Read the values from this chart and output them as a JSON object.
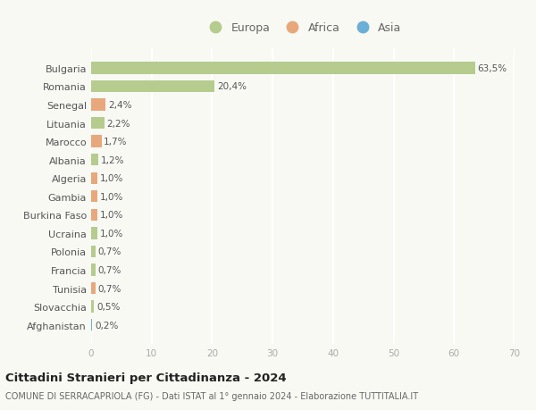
{
  "categories": [
    "Bulgaria",
    "Romania",
    "Senegal",
    "Lituania",
    "Marocco",
    "Albania",
    "Algeria",
    "Gambia",
    "Burkina Faso",
    "Ucraina",
    "Polonia",
    "Francia",
    "Tunisia",
    "Slovacchia",
    "Afghanistan"
  ],
  "values": [
    63.5,
    20.4,
    2.4,
    2.2,
    1.7,
    1.2,
    1.0,
    1.0,
    1.0,
    1.0,
    0.7,
    0.7,
    0.7,
    0.5,
    0.2
  ],
  "labels": [
    "63,5%",
    "20,4%",
    "2,4%",
    "2,2%",
    "1,7%",
    "1,2%",
    "1,0%",
    "1,0%",
    "1,0%",
    "1,0%",
    "0,7%",
    "0,7%",
    "0,7%",
    "0,5%",
    "0,2%"
  ],
  "continents": [
    "Europa",
    "Europa",
    "Africa",
    "Europa",
    "Africa",
    "Europa",
    "Africa",
    "Africa",
    "Africa",
    "Europa",
    "Europa",
    "Europa",
    "Africa",
    "Europa",
    "Asia"
  ],
  "colors": {
    "Europa": "#b5cc8e",
    "Africa": "#e8a87c",
    "Asia": "#6baed6"
  },
  "xlim": [
    0,
    70
  ],
  "xticks": [
    0,
    10,
    20,
    30,
    40,
    50,
    60,
    70
  ],
  "title": "Cittadini Stranieri per Cittadinanza - 2024",
  "subtitle": "COMUNE DI SERRACAPRIOLA (FG) - Dati ISTAT al 1° gennaio 2024 - Elaborazione TUTTITALIA.IT",
  "background_color": "#f9f9f4",
  "grid_color": "#ffffff",
  "bar_height": 0.65
}
